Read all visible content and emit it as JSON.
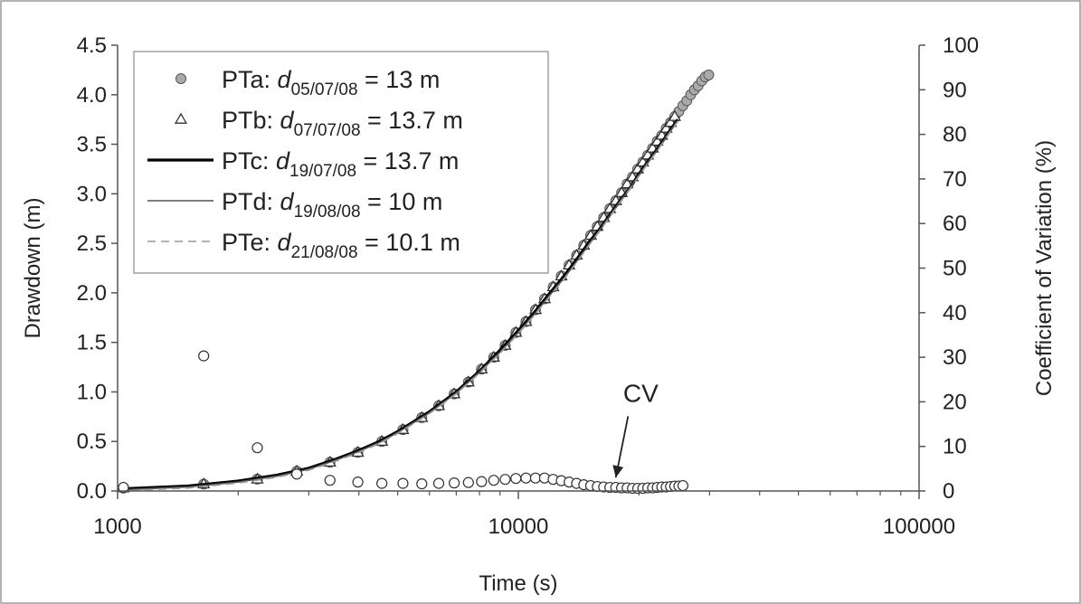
{
  "chart_data": {
    "type": "scatter",
    "x_scale": "log",
    "xlim": [
      1000,
      100000
    ],
    "ylim": [
      0,
      4.5
    ],
    "y2lim": [
      0,
      100
    ],
    "xlabel": "Time (s)",
    "ylabel": "Drawdown (m)",
    "y2label": "Coefficient of Variation (%)",
    "x_ticks": [
      1000,
      10000,
      100000
    ],
    "x_tick_labels": [
      "1000",
      "10000",
      "100000"
    ],
    "y_ticks": [
      0,
      0.5,
      1,
      1.5,
      2,
      2.5,
      3,
      3.5,
      4,
      4.5
    ],
    "y_tick_labels": [
      "0.0",
      "0.5",
      "1.0",
      "1.5",
      "2.0",
      "2.5",
      "3.0",
      "3.5",
      "4.0",
      "4.5"
    ],
    "y2_ticks": [
      0,
      10,
      20,
      30,
      40,
      50,
      60,
      70,
      80,
      90,
      100
    ],
    "y2_tick_labels": [
      "0",
      "10",
      "20",
      "30",
      "40",
      "50",
      "60",
      "70",
      "80",
      "90",
      "100"
    ],
    "grid": false,
    "legend_position": "top-left",
    "series": [
      {
        "name": "PTa",
        "legend_prefix": "PTa: ",
        "legend_var": "d",
        "legend_sub": "05/07/08",
        "legend_value": " = 13 m",
        "marker": "circle-filled",
        "color": "#aaaaaa",
        "x": [
          1034,
          1640,
          2232,
          2800,
          3388,
          3977,
          4565,
          5153,
          5742,
          6330,
          6918,
          7506,
          8095,
          8683,
          9271,
          9860,
          10448,
          11036,
          11625,
          12213,
          12801,
          13389,
          13978,
          14566,
          15154,
          15743,
          16331,
          16919,
          17508,
          18096,
          18684,
          19273,
          19861,
          20449,
          21038,
          21626,
          22214,
          22802,
          23391,
          23979,
          24567,
          25156,
          25744,
          26332,
          26921,
          27509,
          28097,
          28686,
          29274,
          29862
        ],
        "y": [
          0.03,
          0.07,
          0.12,
          0.2,
          0.29,
          0.39,
          0.5,
          0.62,
          0.74,
          0.86,
          0.98,
          1.1,
          1.23,
          1.35,
          1.47,
          1.6,
          1.71,
          1.83,
          1.94,
          2.06,
          2.17,
          2.28,
          2.38,
          2.48,
          2.58,
          2.67,
          2.76,
          2.85,
          2.93,
          3.01,
          3.1,
          3.17,
          3.25,
          3.32,
          3.39,
          3.46,
          3.53,
          3.59,
          3.66,
          3.72,
          3.78,
          3.83,
          3.89,
          3.94,
          4.0,
          4.05,
          4.09,
          4.14,
          4.18,
          4.2
        ]
      },
      {
        "name": "PTb",
        "legend_prefix": "PTb: ",
        "legend_var": "d",
        "legend_sub": "07/07/08",
        "legend_value": " = 13.7 m",
        "marker": "triangle-open",
        "color": "#333333",
        "x": [
          1034,
          1640,
          2232,
          2800,
          3388,
          3977,
          4565,
          5153,
          5742,
          6330,
          6918,
          7506,
          8095,
          8683,
          9271,
          9860,
          10448,
          11036,
          11625,
          12213,
          12801,
          13389,
          13978,
          14566,
          15154,
          15743,
          16331,
          16919,
          17508,
          18096,
          18684,
          19273,
          19861,
          20449,
          21038,
          21626,
          22214,
          22802,
          23391,
          23979,
          24567
        ],
        "y": [
          0.03,
          0.07,
          0.12,
          0.2,
          0.29,
          0.39,
          0.5,
          0.62,
          0.74,
          0.86,
          0.98,
          1.1,
          1.23,
          1.35,
          1.47,
          1.6,
          1.71,
          1.83,
          1.94,
          2.06,
          2.17,
          2.28,
          2.38,
          2.48,
          2.58,
          2.67,
          2.76,
          2.85,
          2.93,
          3.01,
          3.1,
          3.17,
          3.25,
          3.32,
          3.39,
          3.46,
          3.53,
          3.59,
          3.66,
          3.72,
          3.78
        ]
      },
      {
        "name": "PTc",
        "legend_prefix": "PTc: ",
        "legend_var": "d",
        "legend_sub": "19/07/08",
        "legend_value": " = 13.7 m",
        "line": "solid-thick",
        "color": "#000000",
        "x": [
          1000,
          1500,
          2000,
          2500,
          3000,
          3500,
          4000,
          4500,
          5000,
          6000,
          7000,
          8000,
          9000,
          10000,
          11000,
          12000,
          13000,
          14000,
          15000,
          16000,
          17000,
          18000,
          19000,
          20000,
          21000,
          22000,
          23000,
          24000,
          25000
        ],
        "y": [
          0.02,
          0.05,
          0.1,
          0.16,
          0.23,
          0.32,
          0.41,
          0.5,
          0.6,
          0.8,
          1.0,
          1.21,
          1.42,
          1.62,
          1.81,
          2.0,
          2.17,
          2.34,
          2.51,
          2.65,
          2.8,
          2.94,
          3.06,
          3.2,
          3.32,
          3.43,
          3.54,
          3.65,
          3.75
        ]
      },
      {
        "name": "PTd",
        "legend_prefix": "PTd: ",
        "legend_var": "d",
        "legend_sub": "19/08/08",
        "legend_value": " = 10 m",
        "line": "solid-thin",
        "color": "#555555",
        "x": [
          1000,
          1500,
          2000,
          2500,
          3000,
          3500,
          4000,
          4500,
          5000,
          6000,
          7000,
          8000,
          9000,
          10000,
          11000,
          12000,
          13000,
          14000,
          15000,
          16000,
          17000,
          18000,
          19000,
          20000,
          21000,
          22000,
          23000,
          24000,
          25000
        ],
        "y": [
          0.01,
          0.04,
          0.09,
          0.15,
          0.22,
          0.31,
          0.4,
          0.49,
          0.59,
          0.79,
          0.99,
          1.2,
          1.4,
          1.6,
          1.79,
          1.98,
          2.15,
          2.32,
          2.49,
          2.64,
          2.79,
          2.93,
          3.06,
          3.19,
          3.31,
          3.42,
          3.53,
          3.64,
          3.74
        ]
      },
      {
        "name": "PTe",
        "legend_prefix": "PTe: ",
        "legend_var": "d",
        "legend_sub": "21/08/08",
        "legend_value": " = 10.1 m",
        "line": "dashed",
        "color": "#999999",
        "x": [
          1000,
          1500,
          2000,
          2500,
          3000,
          3500,
          4000,
          4500,
          5000,
          6000,
          7000,
          8000,
          9000,
          10000,
          11000,
          12000,
          13000,
          14000,
          15000,
          16000,
          17000,
          18000,
          19000,
          20000,
          21000,
          22000,
          23000,
          24000,
          25000
        ],
        "y": [
          0.0,
          0.03,
          0.08,
          0.14,
          0.21,
          0.3,
          0.39,
          0.48,
          0.58,
          0.78,
          0.98,
          1.19,
          1.39,
          1.59,
          1.78,
          1.97,
          2.14,
          2.31,
          2.48,
          2.63,
          2.78,
          2.92,
          3.05,
          3.18,
          3.3,
          3.41,
          3.52,
          3.63,
          3.73
        ]
      },
      {
        "name": "CV",
        "axis": "y2",
        "marker": "circle-open",
        "color": "#333333",
        "x": [
          1034,
          1640,
          2232,
          2800,
          3388,
          3977,
          4565,
          5153,
          5742,
          6330,
          6918,
          7506,
          8095,
          8683,
          9271,
          9860,
          10448,
          11036,
          11625,
          12213,
          12801,
          13389,
          13978,
          14566,
          15154,
          15743,
          16331,
          16919,
          17508,
          18096,
          18684,
          19273,
          19861,
          20449,
          21038,
          21626,
          22214,
          22802,
          23391,
          23979,
          24567,
          25156,
          25744
        ],
        "y": [
          0.8,
          30.3,
          9.7,
          3.8,
          2.4,
          2.0,
          1.7,
          1.7,
          1.6,
          1.7,
          1.8,
          1.9,
          2.1,
          2.4,
          2.6,
          2.8,
          2.9,
          2.9,
          2.9,
          2.6,
          2.3,
          2.0,
          1.7,
          1.4,
          1.2,
          1.0,
          0.9,
          0.8,
          0.8,
          0.7,
          0.7,
          0.6,
          0.6,
          0.6,
          0.7,
          0.7,
          0.8,
          0.9,
          0.9,
          1.0,
          1.1,
          1.1,
          1.2
        ]
      }
    ],
    "annotations": [
      {
        "text": "CV",
        "x": 20000,
        "y2": 18,
        "arrow_to_x": 17500,
        "arrow_to_y2": 3
      }
    ]
  }
}
